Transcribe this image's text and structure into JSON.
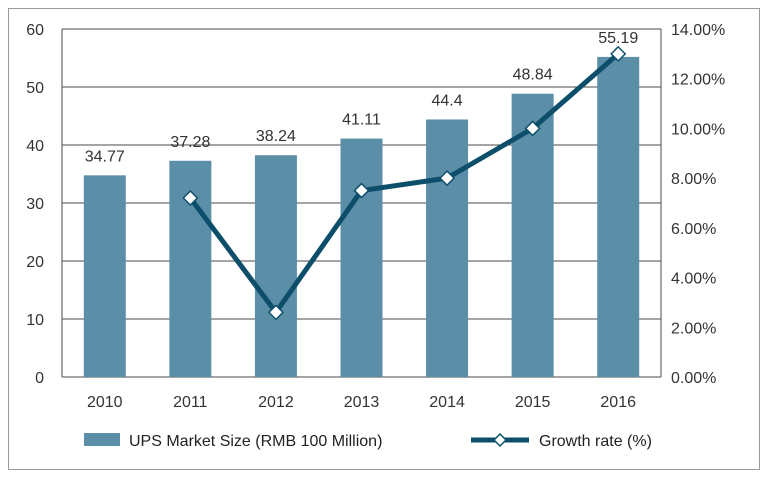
{
  "chart_data": {
    "type": "bar+line",
    "categories": [
      "2010",
      "2011",
      "2012",
      "2013",
      "2014",
      "2015",
      "2016"
    ],
    "series": [
      {
        "name": "UPS Market Size (RMB 100 Million)",
        "type": "bar",
        "axis": "left",
        "values": [
          34.77,
          37.28,
          38.24,
          41.11,
          44.4,
          48.84,
          55.19
        ],
        "labels": [
          "34.77",
          "37.28",
          "38.24",
          "41.11",
          "44.4",
          "48.84",
          "55.19"
        ]
      },
      {
        "name": "Growth rate (%)",
        "type": "line",
        "axis": "right",
        "values": [
          null,
          7.2,
          2.6,
          7.5,
          8.0,
          10.0,
          13.0
        ]
      }
    ],
    "y_left": {
      "ylim": [
        0,
        60
      ],
      "ticks": [
        "0",
        "10",
        "20",
        "30",
        "40",
        "50",
        "60"
      ]
    },
    "y_right": {
      "ylim": [
        0,
        14
      ],
      "ticks": [
        "0.00%",
        "2.00%",
        "4.00%",
        "6.00%",
        "8.00%",
        "10.00%",
        "12.00%",
        "14.00%"
      ]
    },
    "grid": true,
    "legend_position": "bottom",
    "colors": {
      "bar": "#5b8fa8",
      "line": "#0d4f6b",
      "marker_fill": "#ffffff",
      "grid": "#4a4a4a"
    }
  }
}
